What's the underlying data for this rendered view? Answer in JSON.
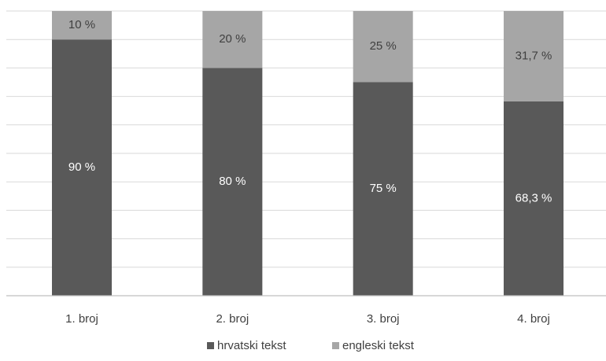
{
  "chart_data": {
    "type": "bar",
    "stacked": true,
    "orientation": "vertical",
    "categories": [
      "1. broj",
      "2. broj",
      "3. broj",
      "4. broj"
    ],
    "series": [
      {
        "name": "hrvatski tekst",
        "values": [
          90,
          80,
          75,
          68.3
        ],
        "labels": [
          "90 %",
          "80 %",
          "75 %",
          "68,3 %"
        ],
        "color": "#595959",
        "label_color": "#ffffff"
      },
      {
        "name": "engleski tekst",
        "values": [
          10,
          20,
          25,
          31.7
        ],
        "labels": [
          "10 %",
          "20 %",
          "25 %",
          "31,7 %"
        ],
        "color": "#a6a6a6",
        "label_color": "#404040"
      }
    ],
    "ylim": [
      0,
      100
    ],
    "grid": true,
    "legend_position": "bottom",
    "title": "",
    "xlabel": "",
    "ylabel": ""
  }
}
